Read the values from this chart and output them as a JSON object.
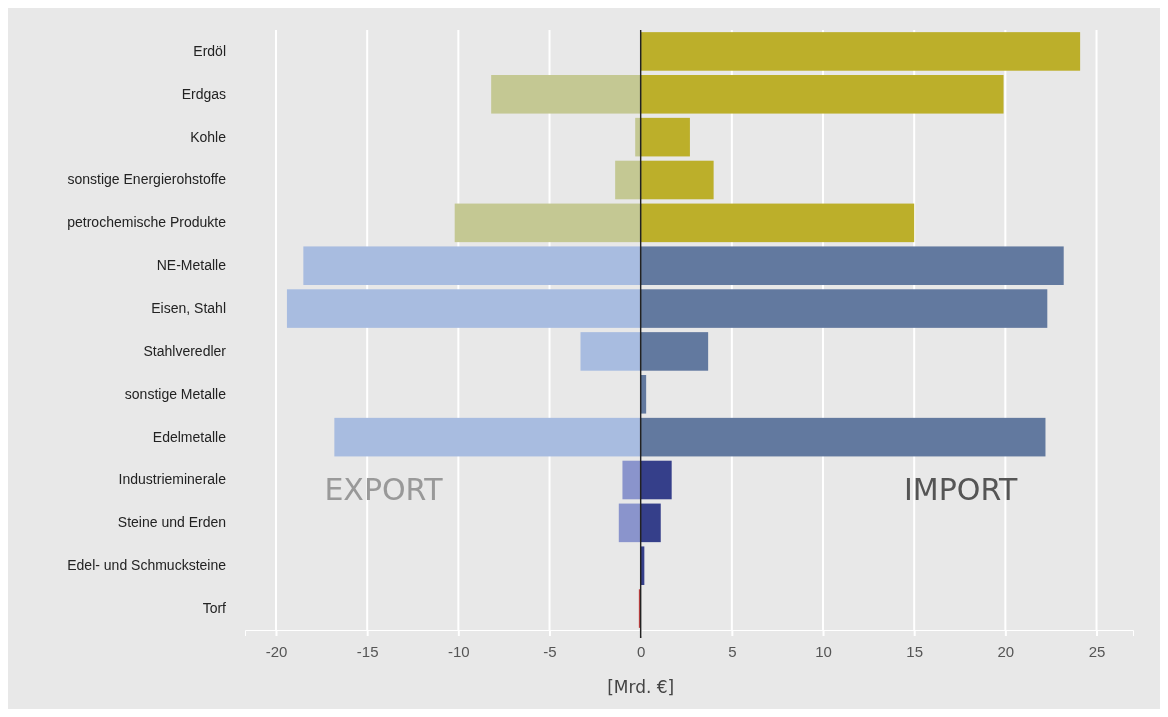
{
  "chart_data": {
    "type": "bar",
    "orientation": "horizontal",
    "stacked": true,
    "xlabel": "[Mrd. €]",
    "categories": [
      "Erdöl",
      "Erdgas",
      "Kohle",
      "sonstige Energierohstoffe",
      "petrochemische Produkte",
      "NE-Metalle",
      "Eisen, Stahl",
      "Stahlveredler",
      "sonstige Metalle",
      "Edelmetalle",
      "Industrieminerale",
      "Steine und Erden",
      "Edel- und Schmucksteine",
      "Torf"
    ],
    "series": [
      {
        "name": "EXPORT",
        "values": [
          0,
          -8.2,
          -0.3,
          -1.4,
          -10.2,
          -18.5,
          -19.4,
          -3.3,
          0,
          -16.8,
          -1.0,
          -1.2,
          0,
          -0.1
        ],
        "colors": [
          "#c4c893",
          "#c4c893",
          "#c4c893",
          "#c4c893",
          "#c4c893",
          "#a8bce0",
          "#a8bce0",
          "#a8bce0",
          "#a8bce0",
          "#a8bce0",
          "#8a94cc",
          "#8a94cc",
          "#8a94cc",
          "#c04040"
        ]
      },
      {
        "name": "IMPORT",
        "values": [
          24.1,
          19.9,
          2.7,
          4.0,
          15.0,
          23.2,
          22.3,
          3.7,
          0.3,
          22.2,
          1.7,
          1.1,
          0.2,
          0
        ],
        "colors": [
          "#bcaf2a",
          "#bcaf2a",
          "#bcaf2a",
          "#bcaf2a",
          "#bcaf2a",
          "#62799f",
          "#62799f",
          "#62799f",
          "#62799f",
          "#62799f",
          "#353f8a",
          "#353f8a",
          "#353f8a",
          "#c04040"
        ]
      }
    ],
    "xlim": [
      -21.7,
      27
    ],
    "xticks": [
      -20,
      -15,
      -10,
      -5,
      0,
      5,
      10,
      15,
      20,
      25
    ],
    "grid": "x",
    "ref_lines": [
      {
        "axis": "x",
        "value": 0,
        "color": "#222222"
      }
    ]
  }
}
